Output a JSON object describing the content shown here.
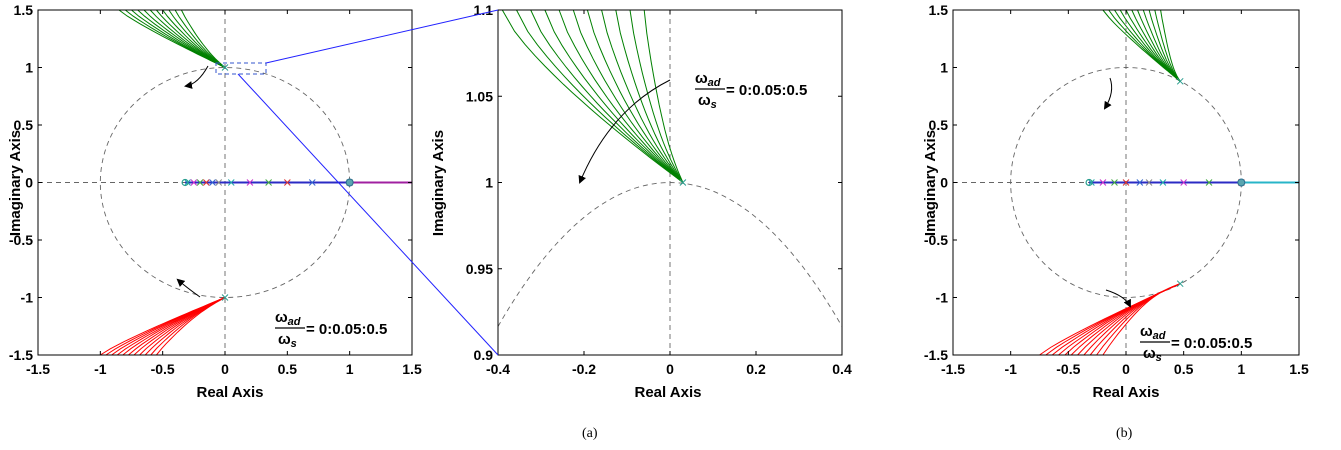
{
  "chart_data": [
    {
      "type": "line",
      "panel": "left",
      "xlabel": "Real Axis",
      "ylabel": "Imaginary Axis",
      "xlim": [
        -1.5,
        1.5
      ],
      "ylim": [
        -1.5,
        1.5
      ],
      "xticks": [
        "-1.5",
        "-1",
        "-0.5",
        "0",
        "0.5",
        "1",
        "1.5"
      ],
      "yticks": [
        "-1.5",
        "-1",
        "-0.5",
        "0",
        "0.5",
        "1",
        "1.5"
      ],
      "unit_circle": true,
      "annotation_num": "ω",
      "annotation_num_sub": "ad",
      "annotation_den": "ω",
      "annotation_den_sub": "s",
      "annotation_rest": "= 0:0.05:0.5",
      "series": [
        {
          "color": "#008000",
          "curves": 11,
          "start_range": [
            -0.85,
            -0.35
          ],
          "start_y": 1.5,
          "end": [
            0.0,
            1.0
          ]
        },
        {
          "color": "#ff0000",
          "curves": 11,
          "start_range": [
            -1.0,
            -0.55
          ],
          "start_y": -1.5,
          "end": [
            0.0,
            -1.0
          ]
        }
      ],
      "real_axis_markers": [
        -0.3,
        -0.25,
        -0.2,
        -0.15,
        -0.1,
        -0.05,
        0.05,
        0.2,
        0.35,
        0.5,
        0.7,
        1.0
      ]
    },
    {
      "type": "line",
      "panel": "zoom",
      "xlabel": "Real Axis",
      "ylabel": "Imaginary Axis",
      "xlim": [
        -0.4,
        0.4
      ],
      "ylim": [
        0.9,
        1.1
      ],
      "xticks": [
        "-0.4",
        "-0.2",
        "0",
        "0.2",
        "0.4"
      ],
      "yticks": [
        "0.9",
        "0.95",
        "1",
        "1.05",
        "1.1"
      ],
      "annotation_num": "ω",
      "annotation_num_sub": "ad",
      "annotation_den": "ω",
      "annotation_den_sub": "s",
      "annotation_rest": "= 0:0.05:0.5",
      "series": [
        {
          "color": "#008000",
          "curves": 11,
          "end": [
            0.03,
            1.0
          ]
        }
      ]
    },
    {
      "type": "line",
      "panel": "right",
      "xlabel": "Real Axis",
      "ylabel": "Imaginary Axis",
      "xlim": [
        -1.5,
        1.5
      ],
      "ylim": [
        -1.5,
        1.5
      ],
      "xticks": [
        "-1.5",
        "-1",
        "-0.5",
        "0",
        "0.5",
        "1",
        "1.5"
      ],
      "yticks": [
        "-1.5",
        "-1",
        "-0.5",
        "0",
        "0.5",
        "1",
        "1.5"
      ],
      "unit_circle": true,
      "annotation_num": "ω",
      "annotation_num_sub": "ad",
      "annotation_den": "ω",
      "annotation_den_sub": "s",
      "annotation_rest": "= 0:0.05:0.5",
      "series": [
        {
          "color": "#008000",
          "curves": 11,
          "start_range": [
            -0.2,
            0.3
          ],
          "start_y": 1.5,
          "end": [
            0.47,
            0.88
          ]
        },
        {
          "color": "#ff0000",
          "curves": 11,
          "start_range": [
            -0.75,
            -0.2
          ],
          "start_y": -1.5,
          "end": [
            0.47,
            -0.88
          ]
        }
      ],
      "real_axis_markers": [
        -0.3,
        -0.2,
        -0.1,
        0.0,
        0.12,
        0.2,
        0.32,
        0.5,
        0.72,
        1.0
      ]
    }
  ],
  "captions": {
    "a": "(a)",
    "b": "(b)"
  }
}
